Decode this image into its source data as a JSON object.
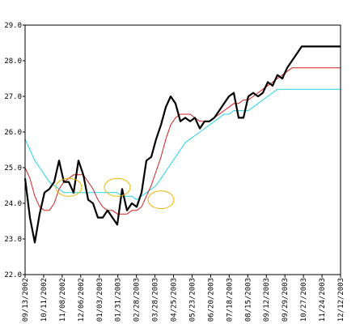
{
  "colors": {
    "background": "#ffffff",
    "axis": "#000000",
    "price": "#000000",
    "ma_short": "#d42020",
    "ma_long": "#22d4e6",
    "highlight": "#f0b400"
  },
  "chart_data": {
    "type": "line",
    "title": "",
    "xlabel": "",
    "ylabel": "",
    "ylim": [
      22.0,
      29.0
    ],
    "y_ticks": [
      "22.0",
      "23.0",
      "24.0",
      "25.0",
      "26.0",
      "27.0",
      "28.0",
      "29.0"
    ],
    "x_ticks": [
      "09/13/2002",
      "10/11/2002",
      "11/08/2002",
      "12/06/2002",
      "01/03/2003",
      "01/31/2003",
      "02/28/2003",
      "03/28/2003",
      "04/25/2003",
      "05/23/2003",
      "06/20/2003",
      "07/18/2003",
      "08/15/2003",
      "09/12/2003",
      "09/29/2003",
      "10/27/2003",
      "11/24/2003",
      "12/12/2003"
    ],
    "grid": false,
    "legend": "none",
    "x_range_weeks": [
      0,
      65
    ],
    "series": [
      {
        "role": "price",
        "x": [
          0,
          1,
          2,
          3,
          4,
          5,
          6,
          7,
          8,
          9,
          10,
          11,
          12,
          13,
          14,
          15,
          16,
          17,
          18,
          19,
          20,
          21,
          22,
          23,
          24,
          25,
          26,
          27,
          28,
          29,
          30,
          31,
          32,
          33,
          34,
          35,
          36,
          37,
          38,
          39,
          40,
          41,
          42,
          43,
          44,
          45,
          46,
          47,
          48,
          49,
          50,
          51,
          52,
          53,
          54,
          55,
          56,
          57,
          58,
          59,
          60,
          61,
          62,
          63,
          64,
          65
        ],
        "values": [
          24.7,
          23.6,
          22.9,
          23.7,
          24.3,
          24.4,
          24.6,
          25.2,
          24.6,
          24.6,
          24.3,
          25.2,
          24.8,
          24.1,
          24.0,
          23.6,
          23.6,
          23.8,
          23.6,
          23.4,
          24.4,
          23.8,
          24.0,
          23.9,
          24.3,
          25.2,
          25.3,
          25.8,
          26.2,
          26.7,
          27.0,
          26.8,
          26.3,
          26.4,
          26.3,
          26.4,
          26.1,
          26.3,
          26.3,
          26.4,
          26.6,
          26.8,
          27.0,
          27.1,
          26.4,
          26.4,
          27.0,
          27.1,
          27.0,
          27.1,
          27.4,
          27.3,
          27.6,
          27.5,
          27.8,
          28.0,
          28.2,
          28.4,
          28.4,
          28.4,
          28.4,
          28.4,
          28.4,
          28.4,
          28.4,
          28.4
        ]
      },
      {
        "role": "moving-average-short",
        "x": [
          0,
          1,
          2,
          3,
          4,
          5,
          6,
          7,
          8,
          9,
          10,
          11,
          12,
          13,
          14,
          15,
          16,
          17,
          18,
          19,
          20,
          21,
          22,
          23,
          24,
          25,
          26,
          27,
          28,
          29,
          30,
          31,
          32,
          33,
          34,
          35,
          36,
          37,
          38,
          39,
          40,
          41,
          42,
          43,
          44,
          45,
          46,
          47,
          48,
          49,
          50,
          51,
          52,
          53,
          54,
          55,
          56,
          57,
          58,
          59,
          60,
          61,
          62,
          63,
          64,
          65
        ],
        "values": [
          25.0,
          24.7,
          24.2,
          23.9,
          23.8,
          23.8,
          24.0,
          24.4,
          24.6,
          24.7,
          24.8,
          24.8,
          24.8,
          24.6,
          24.4,
          24.1,
          23.9,
          23.8,
          23.8,
          23.7,
          23.7,
          23.7,
          23.8,
          23.8,
          23.9,
          24.2,
          24.5,
          24.9,
          25.3,
          25.8,
          26.2,
          26.4,
          26.5,
          26.5,
          26.5,
          26.4,
          26.3,
          26.3,
          26.3,
          26.4,
          26.5,
          26.6,
          26.7,
          26.8,
          26.8,
          26.9,
          26.9,
          27.0,
          27.1,
          27.2,
          27.3,
          27.4,
          27.5,
          27.6,
          27.7,
          27.8,
          27.8,
          27.8,
          27.8,
          27.8,
          27.8,
          27.8,
          27.8,
          27.8,
          27.8,
          27.8
        ]
      },
      {
        "role": "moving-average-long",
        "x": [
          0,
          1,
          2,
          3,
          4,
          5,
          6,
          7,
          8,
          9,
          10,
          11,
          12,
          13,
          14,
          15,
          16,
          17,
          18,
          19,
          20,
          21,
          22,
          23,
          24,
          25,
          26,
          27,
          28,
          29,
          30,
          31,
          32,
          33,
          34,
          35,
          36,
          37,
          38,
          39,
          40,
          41,
          42,
          43,
          44,
          45,
          46,
          47,
          48,
          49,
          50,
          51,
          52,
          53,
          54,
          55,
          56,
          57,
          58,
          59,
          60,
          61,
          62,
          63,
          64,
          65
        ],
        "values": [
          25.8,
          25.5,
          25.2,
          25.0,
          24.8,
          24.6,
          24.5,
          24.4,
          24.3,
          24.3,
          24.3,
          24.3,
          24.3,
          24.3,
          24.3,
          24.3,
          24.3,
          24.3,
          24.3,
          24.3,
          24.2,
          24.2,
          24.2,
          24.1,
          24.2,
          24.3,
          24.4,
          24.5,
          24.7,
          24.9,
          25.1,
          25.3,
          25.5,
          25.7,
          25.8,
          25.9,
          26.0,
          26.1,
          26.2,
          26.3,
          26.4,
          26.5,
          26.5,
          26.6,
          26.6,
          26.6,
          26.6,
          26.7,
          26.8,
          26.9,
          27.0,
          27.1,
          27.2,
          27.2,
          27.2,
          27.2,
          27.2,
          27.2,
          27.2,
          27.2,
          27.2,
          27.2,
          27.2,
          27.2,
          27.2,
          27.2
        ]
      }
    ],
    "highlights": [
      {
        "x": 9,
        "y": 24.45
      },
      {
        "x": 19,
        "y": 24.45
      },
      {
        "x": 28,
        "y": 24.1
      }
    ]
  }
}
